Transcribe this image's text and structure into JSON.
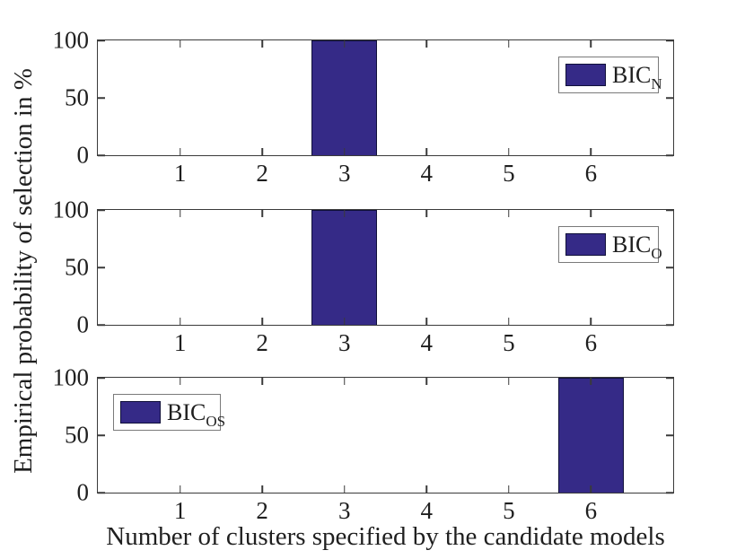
{
  "figure": {
    "background": "#ffffff",
    "axis_color": "#3a3a3a",
    "text_color": "#1f1f1f",
    "bar_fill": "#352a87",
    "bar_edge": "#10103a",
    "legend_border": "#7a7a7a"
  },
  "ylabel": "Empirical probability of selection in %",
  "xlabel": "Number of clusters specified by the candidate models",
  "ticks": {
    "x_labels": [
      "1",
      "2",
      "3",
      "4",
      "5",
      "6"
    ],
    "y_labels": [
      "100",
      "50",
      "0"
    ]
  },
  "legends": [
    {
      "main": "BIC",
      "sub": "N"
    },
    {
      "main": "BIC",
      "sub": "O"
    },
    {
      "main": "BIC",
      "sub": "OS"
    }
  ],
  "chart_data": [
    {
      "type": "bar",
      "title": "",
      "series_name": "BIC_N",
      "categories": [
        1,
        2,
        3,
        4,
        5,
        6
      ],
      "values": [
        0,
        0,
        100,
        0,
        0,
        0
      ],
      "xlim": [
        0,
        7
      ],
      "ylim": [
        0,
        100
      ],
      "xticks": [
        1,
        2,
        3,
        4,
        5,
        6
      ],
      "yticks": [
        0,
        50,
        100
      ],
      "bar": {
        "center": 3,
        "width": 0.8,
        "height": 100
      },
      "legend_position": "upper right",
      "grid": false
    },
    {
      "type": "bar",
      "title": "",
      "series_name": "BIC_O",
      "categories": [
        1,
        2,
        3,
        4,
        5,
        6
      ],
      "values": [
        0,
        0,
        100,
        0,
        0,
        0
      ],
      "xlim": [
        0,
        7
      ],
      "ylim": [
        0,
        100
      ],
      "xticks": [
        1,
        2,
        3,
        4,
        5,
        6
      ],
      "yticks": [
        0,
        50,
        100
      ],
      "bar": {
        "center": 3,
        "width": 0.8,
        "height": 100
      },
      "legend_position": "upper right",
      "grid": false
    },
    {
      "type": "bar",
      "title": "",
      "series_name": "BIC_OS",
      "categories": [
        1,
        2,
        3,
        4,
        5,
        6
      ],
      "values": [
        0,
        0,
        0,
        0,
        0,
        100
      ],
      "xlim": [
        0,
        7
      ],
      "ylim": [
        0,
        100
      ],
      "xticks": [
        1,
        2,
        3,
        4,
        5,
        6
      ],
      "yticks": [
        0,
        50,
        100
      ],
      "bar": {
        "center": 6,
        "width": 0.8,
        "height": 100
      },
      "legend_position": "upper left",
      "grid": false
    }
  ]
}
